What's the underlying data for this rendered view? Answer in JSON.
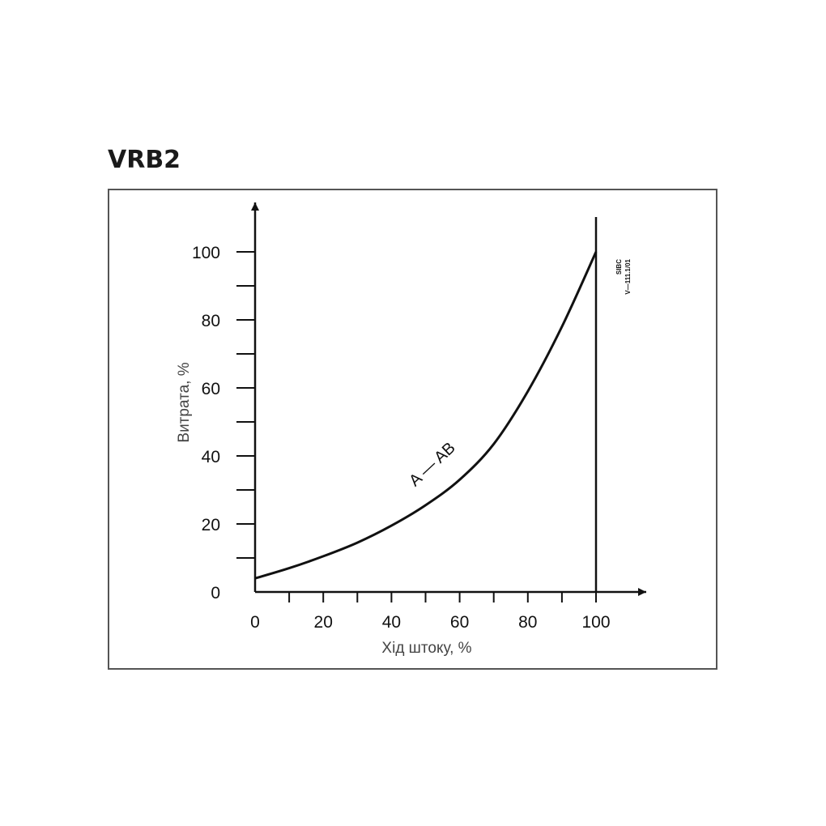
{
  "title": "VRB2",
  "drawing_code": [
    "SIBC",
    "V—111.1/01"
  ],
  "chart_data": {
    "type": "line",
    "xlabel": "Хід штоку, %",
    "ylabel": "Витрата, %",
    "xlim": [
      0,
      110
    ],
    "ylim": [
      0,
      110
    ],
    "x_ticks": [
      0,
      20,
      40,
      60,
      80,
      100
    ],
    "y_ticks": [
      0,
      20,
      40,
      60,
      80,
      100
    ],
    "x_minor_step": 10,
    "y_minor_step": 10,
    "grid": false,
    "vertical_line_x": 100,
    "series": [
      {
        "name": "A — AB",
        "x": [
          0,
          10,
          20,
          30,
          40,
          50,
          60,
          70,
          80,
          90,
          100
        ],
        "y": [
          4,
          7,
          10.5,
          14.5,
          19.5,
          25.5,
          33,
          43.5,
          59,
          78,
          100
        ]
      }
    ]
  }
}
